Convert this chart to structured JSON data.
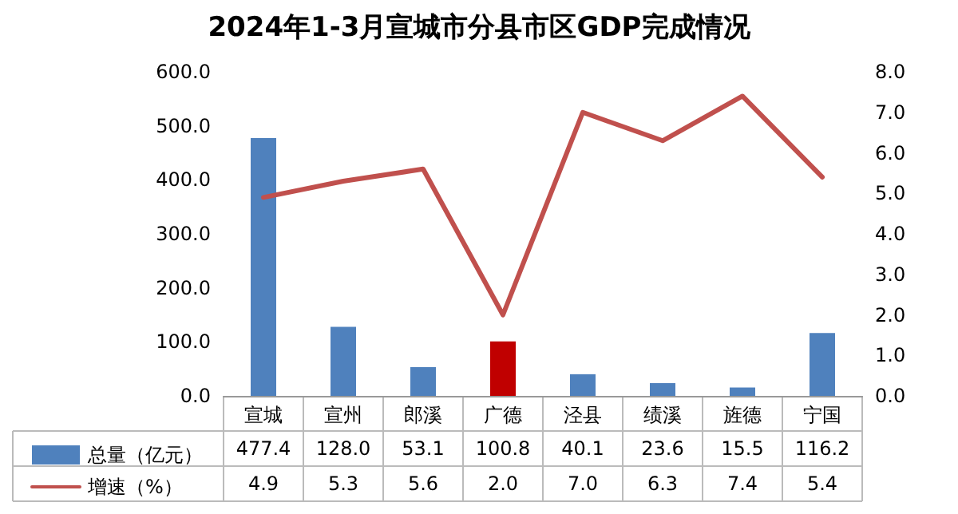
{
  "chart_data": {
    "type": "bar",
    "title": "2024年1-3月宣城市分县市区GDP完成情况",
    "categories": [
      "宣城",
      "宣州",
      "郎溪",
      "广德",
      "泾县",
      "绩溪",
      "旌德",
      "宁国"
    ],
    "series": [
      {
        "name": "总量（亿元）",
        "colors": [
          "#4f81bd",
          "#4f81bd",
          "#4f81bd",
          "#c00000",
          "#4f81bd",
          "#4f81bd",
          "#4f81bd",
          "#4f81bd"
        ],
        "color": "#4f81bd",
        "values": [
          477.4,
          128.0,
          53.1,
          100.8,
          40.1,
          23.6,
          15.5,
          116.2
        ],
        "value_labels": [
          "477.4",
          "128.0",
          "53.1",
          "100.8",
          "40.1",
          "23.6",
          "15.5",
          "116.2"
        ]
      },
      {
        "name": "增速（%）",
        "type": "line",
        "axis": "y2",
        "color": "#c0504d",
        "values": [
          4.9,
          5.3,
          5.6,
          2.0,
          7.0,
          6.3,
          7.4,
          5.4
        ],
        "value_labels": [
          "4.9",
          "5.3",
          "5.6",
          "2.0",
          "7.0",
          "6.3",
          "7.4",
          "5.4"
        ]
      }
    ],
    "ylim": [
      0,
      600
    ],
    "yticks": [
      {
        "value": 0,
        "label": "0.0"
      },
      {
        "value": 100,
        "label": "100.0"
      },
      {
        "value": 200,
        "label": "200.0"
      },
      {
        "value": 300,
        "label": "300.0"
      },
      {
        "value": 400,
        "label": "400.0"
      },
      {
        "value": 500,
        "label": "500.0"
      },
      {
        "value": 600,
        "label": "600.0"
      }
    ],
    "y2lim": [
      0,
      8
    ],
    "y2ticks": [
      {
        "value": 0,
        "label": "0.0"
      },
      {
        "value": 1,
        "label": "1.0"
      },
      {
        "value": 2,
        "label": "2.0"
      },
      {
        "value": 3,
        "label": "3.0"
      },
      {
        "value": 4,
        "label": "4.0"
      },
      {
        "value": 5,
        "label": "5.0"
      },
      {
        "value": 6,
        "label": "6.0"
      },
      {
        "value": 7,
        "label": "7.0"
      },
      {
        "value": 8,
        "label": "8.0"
      }
    ],
    "grid": false,
    "legend": "bottom left",
    "marker": "none",
    "line_style": "solid"
  }
}
